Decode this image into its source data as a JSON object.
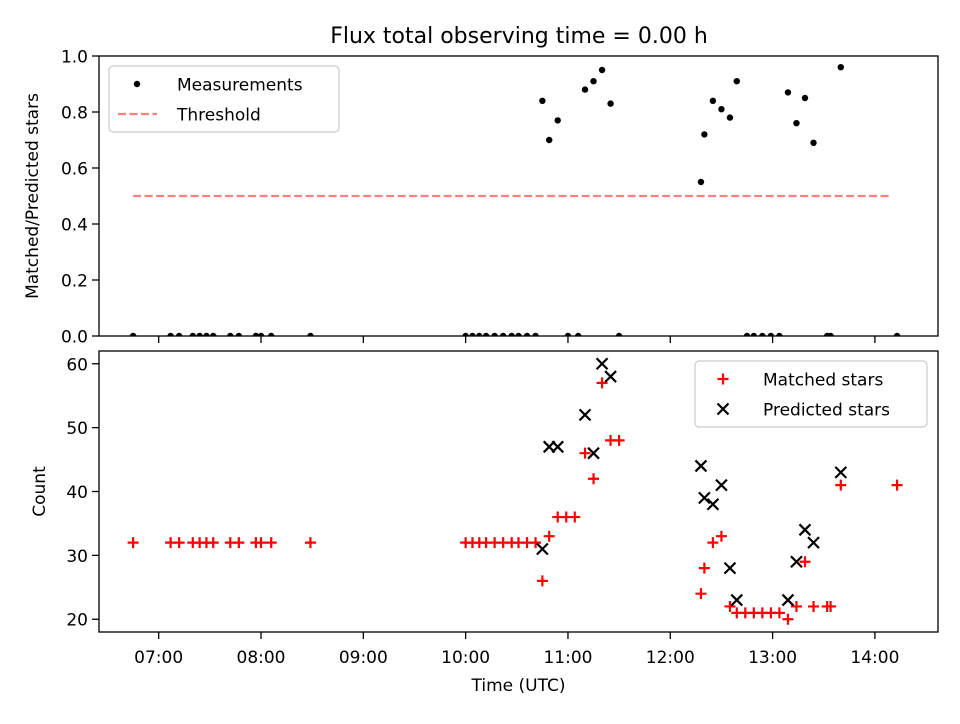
{
  "figure": {
    "title": "Flux total observing time = 0.00 h"
  },
  "chart_data": [
    {
      "type": "scatter",
      "title": "Flux total observing time = 0.00 h",
      "xlabel": "",
      "ylabel": "Matched/Predicted stars",
      "xlim": [
        "06:25",
        "14:37"
      ],
      "ylim": [
        0,
        1.0
      ],
      "yticks": [
        0.0,
        0.2,
        0.4,
        0.6,
        0.8,
        1.0
      ],
      "ytick_labels": [
        "0.0",
        "0.2",
        "0.4",
        "0.6",
        "0.8",
        "1.0"
      ],
      "legend_position": "top-left",
      "series": [
        {
          "name": "Measurements",
          "marker": "dot",
          "color": "#000000",
          "points": [
            [
              "06:45",
              0
            ],
            [
              "07:07",
              0
            ],
            [
              "07:12",
              0
            ],
            [
              "07:20",
              0
            ],
            [
              "07:24",
              0
            ],
            [
              "07:28",
              0
            ],
            [
              "07:32",
              0
            ],
            [
              "07:42",
              0
            ],
            [
              "07:47",
              0
            ],
            [
              "07:57",
              0
            ],
            [
              "08:00",
              0
            ],
            [
              "08:06",
              0
            ],
            [
              "08:29",
              0
            ],
            [
              "10:00",
              0
            ],
            [
              "10:04",
              0
            ],
            [
              "10:08",
              0
            ],
            [
              "10:12",
              0
            ],
            [
              "10:17",
              0
            ],
            [
              "10:22",
              0
            ],
            [
              "10:27",
              0
            ],
            [
              "10:31",
              0
            ],
            [
              "10:36",
              0
            ],
            [
              "10:41",
              0
            ],
            [
              "10:45",
              0.84
            ],
            [
              "10:49",
              0.7
            ],
            [
              "10:54",
              0.77
            ],
            [
              "11:00",
              0
            ],
            [
              "11:06",
              0
            ],
            [
              "11:10",
              0.88
            ],
            [
              "11:15",
              0.91
            ],
            [
              "11:20",
              0.95
            ],
            [
              "11:25",
              0.83
            ],
            [
              "11:30",
              0
            ],
            [
              "12:18",
              0.55
            ],
            [
              "12:20",
              0.72
            ],
            [
              "12:25",
              0.84
            ],
            [
              "12:30",
              0.81
            ],
            [
              "12:35",
              0.78
            ],
            [
              "12:39",
              0.91
            ],
            [
              "12:45",
              0
            ],
            [
              "12:49",
              0
            ],
            [
              "12:54",
              0
            ],
            [
              "12:59",
              0
            ],
            [
              "13:04",
              0
            ],
            [
              "13:09",
              0.87
            ],
            [
              "13:14",
              0.76
            ],
            [
              "13:19",
              0.85
            ],
            [
              "13:24",
              0.69
            ],
            [
              "13:32",
              0
            ],
            [
              "13:34",
              0
            ],
            [
              "13:40",
              0.96
            ],
            [
              "14:13",
              0
            ]
          ]
        },
        {
          "name": "Threshold",
          "line_style": "dashed",
          "color": "#ff7f7f",
          "points": [
            [
              "06:45",
              0.5
            ],
            [
              "14:10",
              0.5
            ]
          ]
        }
      ]
    },
    {
      "type": "scatter",
      "title": "",
      "xlabel": "Time (UTC)",
      "ylabel": "Count",
      "xlim": [
        "06:25",
        "14:37"
      ],
      "ylim": [
        18,
        62
      ],
      "yticks": [
        20,
        30,
        40,
        50,
        60
      ],
      "ytick_labels": [
        "20",
        "30",
        "40",
        "50",
        "60"
      ],
      "xticks": [
        "07:00",
        "08:00",
        "09:00",
        "10:00",
        "11:00",
        "12:00",
        "13:00",
        "14:00"
      ],
      "legend_position": "top-right",
      "series": [
        {
          "name": "Matched stars",
          "marker": "plus",
          "color": "#ff0000",
          "points": [
            [
              "06:45",
              32
            ],
            [
              "07:07",
              32
            ],
            [
              "07:12",
              32
            ],
            [
              "07:20",
              32
            ],
            [
              "07:24",
              32
            ],
            [
              "07:28",
              32
            ],
            [
              "07:32",
              32
            ],
            [
              "07:42",
              32
            ],
            [
              "07:47",
              32
            ],
            [
              "07:57",
              32
            ],
            [
              "08:00",
              32
            ],
            [
              "08:06",
              32
            ],
            [
              "08:29",
              32
            ],
            [
              "10:00",
              32
            ],
            [
              "10:04",
              32
            ],
            [
              "10:08",
              32
            ],
            [
              "10:12",
              32
            ],
            [
              "10:17",
              32
            ],
            [
              "10:22",
              32
            ],
            [
              "10:27",
              32
            ],
            [
              "10:31",
              32
            ],
            [
              "10:36",
              32
            ],
            [
              "10:41",
              32
            ],
            [
              "10:45",
              26
            ],
            [
              "10:49",
              33
            ],
            [
              "10:54",
              36
            ],
            [
              "10:59",
              36
            ],
            [
              "11:04",
              36
            ],
            [
              "11:10",
              46
            ],
            [
              "11:15",
              42
            ],
            [
              "11:20",
              57
            ],
            [
              "11:25",
              48
            ],
            [
              "11:30",
              48
            ],
            [
              "12:18",
              24
            ],
            [
              "12:20",
              28
            ],
            [
              "12:25",
              32
            ],
            [
              "12:30",
              33
            ],
            [
              "12:35",
              22
            ],
            [
              "12:39",
              21
            ],
            [
              "12:44",
              21
            ],
            [
              "12:49",
              21
            ],
            [
              "12:54",
              21
            ],
            [
              "12:59",
              21
            ],
            [
              "13:04",
              21
            ],
            [
              "13:09",
              20
            ],
            [
              "13:14",
              22
            ],
            [
              "13:19",
              29
            ],
            [
              "13:24",
              22
            ],
            [
              "13:32",
              22
            ],
            [
              "13:34",
              22
            ],
            [
              "13:40",
              41
            ],
            [
              "14:13",
              41
            ]
          ]
        },
        {
          "name": "Predicted stars",
          "marker": "x",
          "color": "#000000",
          "points": [
            [
              "10:45",
              31
            ],
            [
              "10:49",
              47
            ],
            [
              "10:54",
              47
            ],
            [
              "11:10",
              52
            ],
            [
              "11:15",
              46
            ],
            [
              "11:20",
              60
            ],
            [
              "11:25",
              58
            ],
            [
              "12:18",
              44
            ],
            [
              "12:20",
              39
            ],
            [
              "12:25",
              38
            ],
            [
              "12:30",
              41
            ],
            [
              "12:35",
              28
            ],
            [
              "12:39",
              23
            ],
            [
              "13:09",
              23
            ],
            [
              "13:14",
              29
            ],
            [
              "13:19",
              34
            ],
            [
              "13:24",
              32
            ],
            [
              "13:40",
              43
            ]
          ]
        }
      ]
    }
  ]
}
